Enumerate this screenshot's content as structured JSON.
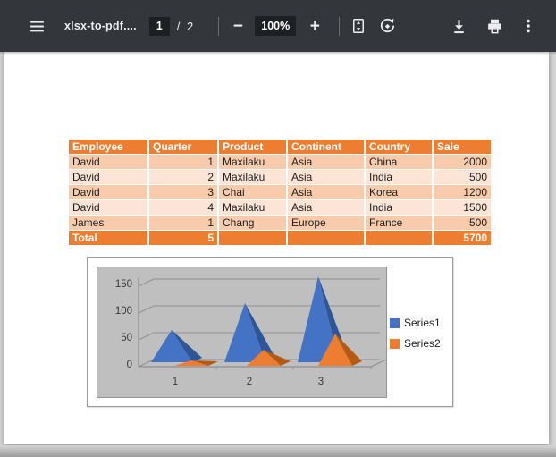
{
  "toolbar": {
    "title": "xlsx-to-pdf....",
    "page_current": "1",
    "page_of": "/ 2",
    "zoom_level": "100%"
  },
  "icons": {
    "menu": "menu-icon",
    "zoom_out": "−",
    "zoom_in": "+",
    "fit_page": "fit-to-page-icon",
    "rotate": "rotate-counterclockwise-icon",
    "download": "download-icon",
    "print": "print-icon",
    "more": "more-options-icon"
  },
  "table": {
    "headers": [
      "Employee",
      "Quarter",
      "Product",
      "Continent",
      "Country",
      "Sale"
    ],
    "rows": [
      [
        "David",
        "1",
        "Maxilaku",
        "Asia",
        "China",
        "2000"
      ],
      [
        "David",
        "2",
        "Maxilaku",
        "Asia",
        "India",
        "500"
      ],
      [
        "David",
        "3",
        "Chai",
        "Asia",
        "Korea",
        "1200"
      ],
      [
        "David",
        "4",
        "Maxilaku",
        "Asia",
        "India",
        "1500"
      ],
      [
        "James",
        "1",
        "Chang",
        "Europe",
        "France",
        "500"
      ]
    ],
    "total_row": [
      "Total",
      "5",
      "",
      "",
      "",
      "5700"
    ]
  },
  "chart_data": {
    "type": "bar",
    "subtype": "pyramid-3d",
    "title": "",
    "xlabel": "",
    "ylabel": "",
    "categories": [
      "1",
      "2",
      "3"
    ],
    "series": [
      {
        "name": "Series1",
        "values": [
          60,
          110,
          160
        ],
        "color": "#4472C4",
        "color_dark": "#2E5596"
      },
      {
        "name": "Series2",
        "values": [
          10,
          30,
          60
        ],
        "color": "#ED7D31",
        "color_dark": "#B55A14"
      }
    ],
    "yticks": [
      0,
      50,
      100,
      150
    ],
    "ylim": [
      0,
      150
    ],
    "legend_position": "right",
    "grid": true,
    "plot_bg": "#BFBFBF"
  },
  "colors": {
    "toolbar_bg": "#33373B",
    "table_header_bg": "#ED7D31",
    "row_band_dark": "#F8CBAD",
    "row_band_light": "#FCE4D6",
    "total_row_bg": "#ED7D31",
    "series1_blue": "#4472C4",
    "series2_orange": "#ED7D31"
  }
}
